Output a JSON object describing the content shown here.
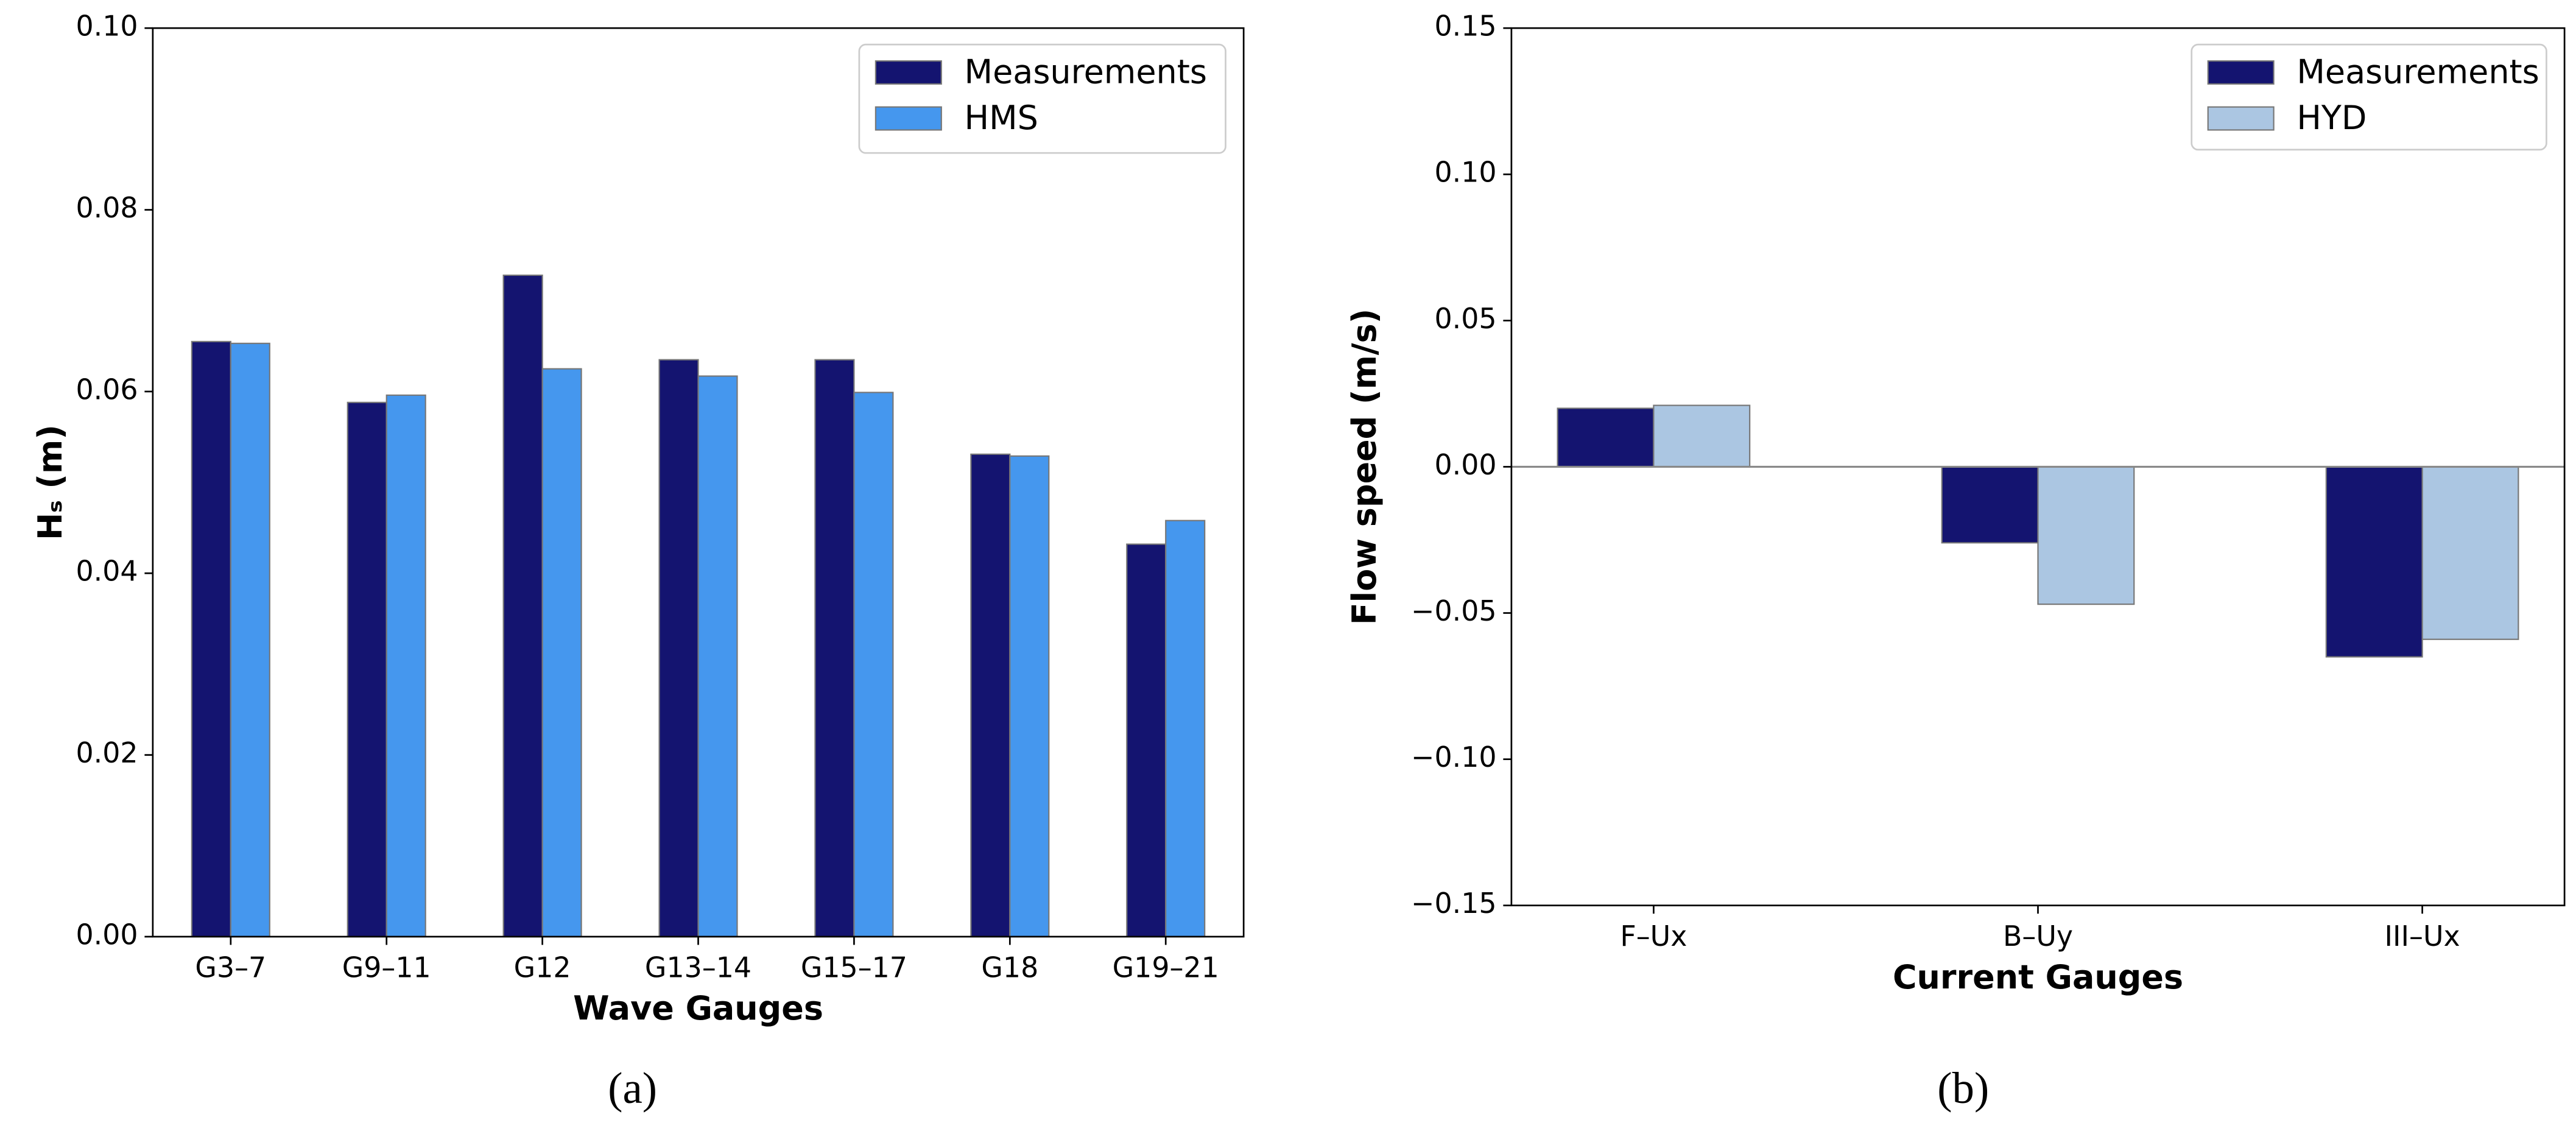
{
  "chart_data": [
    {
      "type": "bar",
      "caption": "(a)",
      "xlabel": "Wave Gauges",
      "ylabel": "Hₛ (m)",
      "categories": [
        "G3–7",
        "G9–11",
        "G12",
        "G13–14",
        "G15–17",
        "G18",
        "G19–21"
      ],
      "series": [
        {
          "name": "Measurements",
          "color": "#141470",
          "values": [
            0.0655,
            0.0588,
            0.0728,
            0.0635,
            0.0635,
            0.0531,
            0.0432
          ]
        },
        {
          "name": "HMS",
          "color": "#4597ee",
          "values": [
            0.0653,
            0.0596,
            0.0625,
            0.0617,
            0.0599,
            0.0529,
            0.0458
          ]
        }
      ],
      "ylim": [
        0,
        0.1
      ],
      "yticks": [
        {
          "value": 0,
          "label": "0.00"
        },
        {
          "value": 0.02,
          "label": "0.02"
        },
        {
          "value": 0.04,
          "label": "0.04"
        },
        {
          "value": 0.06,
          "label": "0.06"
        },
        {
          "value": 0.08,
          "label": "0.08"
        },
        {
          "value": 0.1,
          "label": "0.10"
        }
      ],
      "legend": "upper-right",
      "zero_line": false
    },
    {
      "type": "bar",
      "caption": "(b)",
      "xlabel": "Current Gauges",
      "ylabel": "Flow speed (m/s)",
      "categories": [
        "F–Ux",
        "B–Uy",
        "III–Ux"
      ],
      "series": [
        {
          "name": "Measurements",
          "color": "#141470",
          "values": [
            0.02,
            -0.026,
            -0.065
          ]
        },
        {
          "name": "HYD",
          "color": "#abc6e2",
          "values": [
            0.021,
            -0.047,
            -0.059
          ]
        }
      ],
      "ylim": [
        -0.15,
        0.15
      ],
      "yticks": [
        {
          "value": -0.15,
          "label": "−0.15"
        },
        {
          "value": -0.1,
          "label": "−0.10"
        },
        {
          "value": -0.05,
          "label": "−0.05"
        },
        {
          "value": 0,
          "label": "0.00"
        },
        {
          "value": 0.05,
          "label": "0.05"
        },
        {
          "value": 0.1,
          "label": "0.10"
        },
        {
          "value": 0.15,
          "label": "0.15"
        }
      ],
      "legend": "upper-right",
      "zero_line": true
    }
  ]
}
